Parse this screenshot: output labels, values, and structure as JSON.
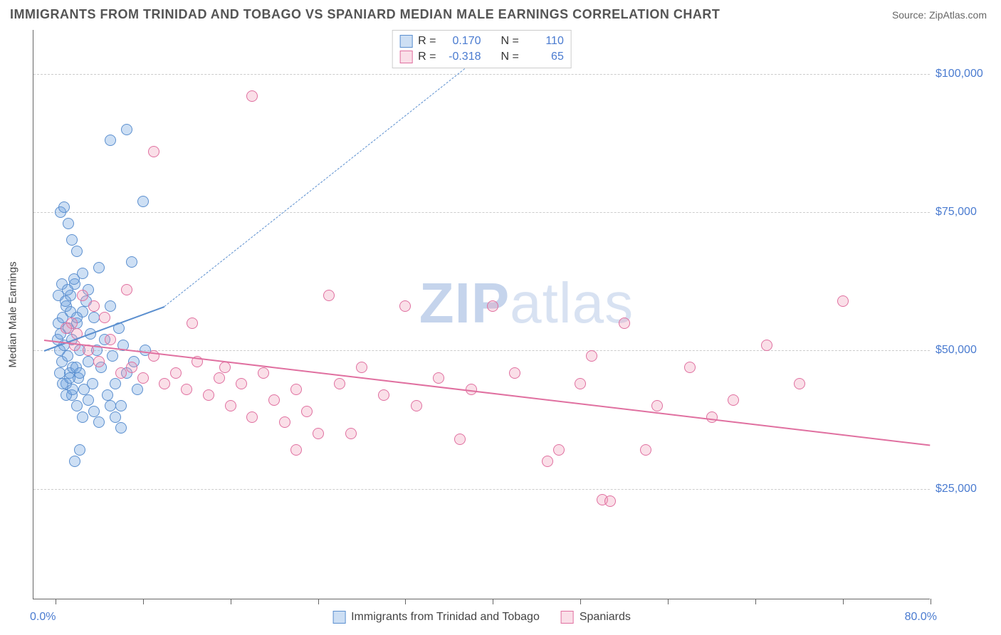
{
  "header": {
    "title": "IMMIGRANTS FROM TRINIDAD AND TOBAGO VS SPANIARD MEDIAN MALE EARNINGS CORRELATION CHART",
    "source_prefix": "Source: ",
    "source": "ZipAtlas.com"
  },
  "chart": {
    "type": "scatter",
    "ylabel": "Median Male Earnings",
    "xlim": [
      -2,
      80
    ],
    "ylim": [
      5000,
      108000
    ],
    "xlim_labels": {
      "min": "0.0%",
      "max": "80.0%"
    },
    "xtick_positions": [
      0,
      8,
      16,
      24,
      32,
      40,
      48,
      56,
      64,
      72,
      80
    ],
    "ygrid": [
      {
        "value": 25000,
        "label": "$25,000"
      },
      {
        "value": 50000,
        "label": "$50,000"
      },
      {
        "value": 75000,
        "label": "$75,000"
      },
      {
        "value": 100000,
        "label": "$100,000"
      }
    ],
    "background_color": "#ffffff",
    "grid_color": "#cccccc",
    "axis_color": "#666666",
    "tick_label_color": "#4a7bd0",
    "marker_radius": 8,
    "marker_opacity": 0.5,
    "watermark": "ZIPatlas"
  },
  "series": [
    {
      "id": "trinidad",
      "label": "Immigrants from Trinidad and Tobago",
      "color": "#6fa3e0",
      "fill": "rgba(111,163,224,0.35)",
      "stroke": "#5b8fcf",
      "R": "0.170",
      "N": "110",
      "trend": {
        "x1": -1,
        "y1": 50000,
        "x2": 10,
        "y2": 58000,
        "dash_x2": 40,
        "dash_y2": 105000
      },
      "points": [
        [
          0.2,
          52000
        ],
        [
          0.3,
          55000
        ],
        [
          0.4,
          50000
        ],
        [
          0.5,
          53000
        ],
        [
          0.6,
          48000
        ],
        [
          0.7,
          56000
        ],
        [
          0.8,
          51000
        ],
        [
          1.0,
          58000
        ],
        [
          1.1,
          49000
        ],
        [
          1.2,
          54000
        ],
        [
          1.3,
          46000
        ],
        [
          1.4,
          60000
        ],
        [
          1.5,
          52000
        ],
        [
          1.6,
          47000
        ],
        [
          1.8,
          62000
        ],
        [
          2.0,
          55000
        ],
        [
          2.1,
          45000
        ],
        [
          2.2,
          50000
        ],
        [
          2.5,
          57000
        ],
        [
          2.6,
          43000
        ],
        [
          2.8,
          59000
        ],
        [
          3.0,
          48000
        ],
        [
          3.2,
          53000
        ],
        [
          3.4,
          44000
        ],
        [
          3.5,
          56000
        ],
        [
          3.8,
          50000
        ],
        [
          4.0,
          65000
        ],
        [
          4.2,
          47000
        ],
        [
          4.5,
          52000
        ],
        [
          4.8,
          42000
        ],
        [
          5.0,
          58000
        ],
        [
          5.2,
          49000
        ],
        [
          5.5,
          44000
        ],
        [
          5.8,
          54000
        ],
        [
          6.0,
          40000
        ],
        [
          6.2,
          51000
        ],
        [
          6.5,
          46000
        ],
        [
          7.0,
          66000
        ],
        [
          7.2,
          48000
        ],
        [
          7.5,
          43000
        ],
        [
          8.0,
          77000
        ],
        [
          8.2,
          50000
        ],
        [
          0.5,
          75000
        ],
        [
          0.8,
          76000
        ],
        [
          1.2,
          73000
        ],
        [
          1.5,
          70000
        ],
        [
          2.0,
          68000
        ],
        [
          2.5,
          64000
        ],
        [
          3.0,
          61000
        ],
        [
          1.0,
          44000
        ],
        [
          1.5,
          42000
        ],
        [
          2.0,
          40000
        ],
        [
          2.5,
          38000
        ],
        [
          3.0,
          41000
        ],
        [
          3.5,
          39000
        ],
        [
          4.0,
          37000
        ],
        [
          5.0,
          40000
        ],
        [
          5.5,
          38000
        ],
        [
          6.0,
          36000
        ],
        [
          1.8,
          30000
        ],
        [
          2.2,
          32000
        ],
        [
          5.0,
          88000
        ],
        [
          6.5,
          90000
        ],
        [
          0.3,
          60000
        ],
        [
          0.6,
          62000
        ],
        [
          0.9,
          59000
        ],
        [
          1.1,
          61000
        ],
        [
          1.4,
          57000
        ],
        [
          1.7,
          63000
        ],
        [
          2.0,
          56000
        ],
        [
          0.4,
          46000
        ],
        [
          0.7,
          44000
        ],
        [
          1.0,
          42000
        ],
        [
          1.3,
          45000
        ],
        [
          1.6,
          43000
        ],
        [
          1.9,
          47000
        ],
        [
          2.2,
          46000
        ]
      ]
    },
    {
      "id": "spaniards",
      "label": "Spaniards",
      "color": "#e87fa3",
      "fill": "rgba(240,150,180,0.30)",
      "stroke": "#e070a0",
      "R": "-0.318",
      "N": "65",
      "trend": {
        "x1": -1,
        "y1": 52000,
        "x2": 80,
        "y2": 33000
      },
      "points": [
        [
          1.5,
          55000
        ],
        [
          2.0,
          53000
        ],
        [
          3.0,
          50000
        ],
        [
          4.0,
          48000
        ],
        [
          5.0,
          52000
        ],
        [
          6.0,
          46000
        ],
        [
          7.0,
          47000
        ],
        [
          8.0,
          45000
        ],
        [
          9.0,
          49000
        ],
        [
          10.0,
          44000
        ],
        [
          11.0,
          46000
        ],
        [
          12.0,
          43000
        ],
        [
          13.0,
          48000
        ],
        [
          14.0,
          42000
        ],
        [
          15.0,
          45000
        ],
        [
          16.0,
          40000
        ],
        [
          17.0,
          44000
        ],
        [
          18.0,
          38000
        ],
        [
          19.0,
          46000
        ],
        [
          20.0,
          41000
        ],
        [
          21.0,
          37000
        ],
        [
          22.0,
          43000
        ],
        [
          23.0,
          39000
        ],
        [
          25.0,
          60000
        ],
        [
          26.0,
          44000
        ],
        [
          27.0,
          35000
        ],
        [
          28.0,
          47000
        ],
        [
          30.0,
          42000
        ],
        [
          32.0,
          58000
        ],
        [
          33.0,
          40000
        ],
        [
          35.0,
          45000
        ],
        [
          37.0,
          34000
        ],
        [
          38.0,
          43000
        ],
        [
          40.0,
          58000
        ],
        [
          42.0,
          46000
        ],
        [
          45.0,
          30000
        ],
        [
          46.0,
          32000
        ],
        [
          48.0,
          44000
        ],
        [
          49.0,
          49000
        ],
        [
          50.0,
          23000
        ],
        [
          50.7,
          22800
        ],
        [
          52.0,
          55000
        ],
        [
          54.0,
          32000
        ],
        [
          55.0,
          40000
        ],
        [
          58.0,
          47000
        ],
        [
          60.0,
          38000
        ],
        [
          62.0,
          41000
        ],
        [
          65.0,
          51000
        ],
        [
          68.0,
          44000
        ],
        [
          72.0,
          59000
        ],
        [
          18.0,
          96000
        ],
        [
          9.0,
          86000
        ],
        [
          22.0,
          32000
        ],
        [
          24.0,
          35000
        ],
        [
          2.5,
          60000
        ],
        [
          3.5,
          58000
        ],
        [
          4.5,
          56000
        ],
        [
          12.5,
          55000
        ],
        [
          6.5,
          61000
        ],
        [
          15.5,
          47000
        ],
        [
          1.0,
          54000
        ],
        [
          1.8,
          51000
        ]
      ]
    }
  ],
  "legend_top": {
    "r_label": "R =",
    "n_label": "N ="
  }
}
